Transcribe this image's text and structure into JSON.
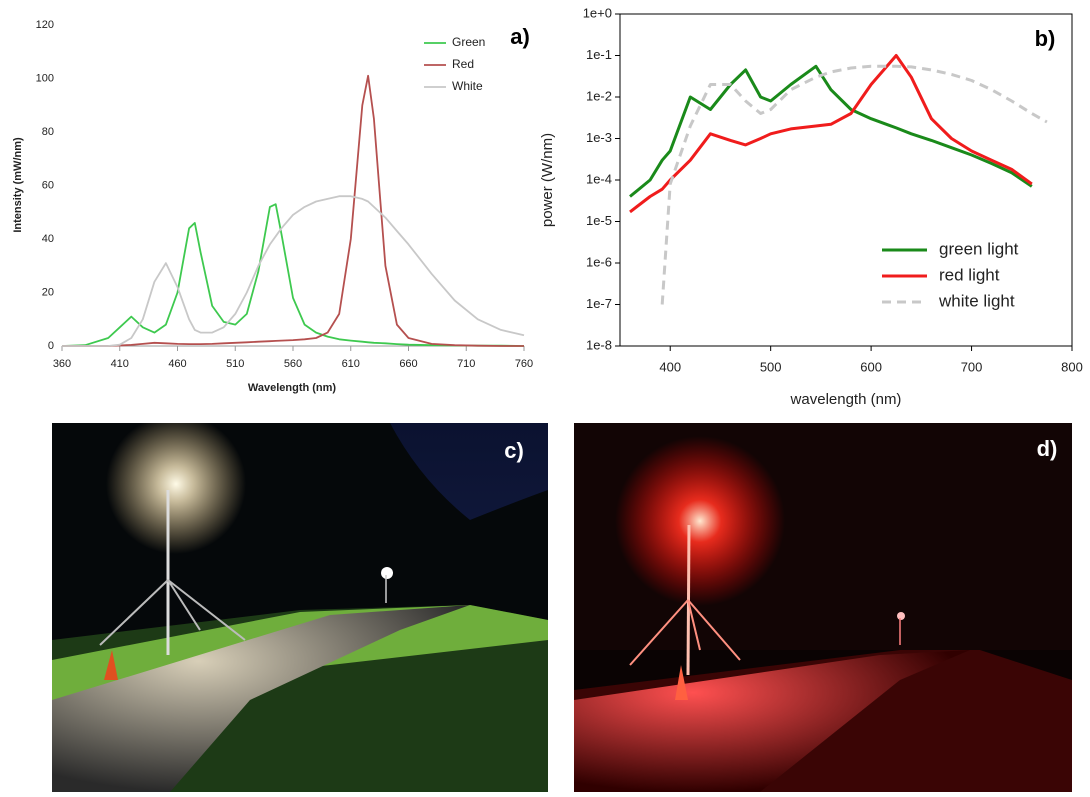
{
  "chart_data": [
    {
      "type": "line",
      "panel_label": "a)",
      "xlabel": "Wavelength (nm)",
      "ylabel": "Intensity (mW/nm)",
      "x": [
        360,
        380,
        400,
        410,
        420,
        430,
        440,
        450,
        460,
        470,
        475,
        480,
        490,
        500,
        510,
        520,
        530,
        540,
        545,
        550,
        560,
        570,
        580,
        590,
        600,
        610,
        620,
        625,
        630,
        640,
        650,
        660,
        680,
        700,
        720,
        740,
        760
      ],
      "series": [
        {
          "name": "Green",
          "color": "#3ec94f",
          "values": [
            0,
            0.3,
            3,
            7,
            11,
            7,
            5,
            8,
            20,
            44,
            46,
            35,
            15,
            9,
            8,
            12,
            28,
            52,
            53,
            42,
            18,
            8,
            5,
            3.5,
            2.5,
            2,
            1.6,
            1.4,
            1.2,
            1,
            0.7,
            0.5,
            0.3,
            0.2,
            0.1,
            0.1,
            0
          ]
        },
        {
          "name": "Red",
          "color": "#b5504f",
          "values": [
            0,
            0,
            0,
            0.2,
            0.4,
            0.8,
            1.2,
            1,
            0.8,
            0.7,
            0.7,
            0.7,
            0.8,
            1,
            1.2,
            1.4,
            1.6,
            1.8,
            1.9,
            2,
            2.2,
            2.5,
            3,
            5,
            12,
            40,
            90,
            101,
            85,
            30,
            8,
            3,
            0.8,
            0.3,
            0.1,
            0,
            0
          ]
        },
        {
          "name": "White",
          "color": "#c8c8c8",
          "values": [
            0,
            0,
            0,
            0.5,
            3,
            10,
            24,
            31,
            22,
            10,
            6,
            5,
            5,
            7,
            12,
            20,
            30,
            38,
            41,
            44,
            49,
            52,
            54,
            55,
            56,
            56,
            55,
            54,
            52,
            48,
            43,
            38,
            27,
            17,
            10,
            6,
            4
          ]
        }
      ],
      "xlim": [
        360,
        760
      ],
      "xticks": [
        360,
        410,
        460,
        510,
        560,
        610,
        660,
        710,
        760
      ],
      "ylim": [
        0,
        120
      ],
      "yticks": [
        0,
        20,
        40,
        60,
        80,
        100,
        120
      ],
      "legend": "upper right"
    },
    {
      "type": "line",
      "panel_label": "b)",
      "xlabel": "wavelength (nm)",
      "ylabel": "power (W/nm)",
      "log_y": true,
      "x": [
        360,
        380,
        392,
        400,
        420,
        440,
        460,
        475,
        490,
        500,
        520,
        545,
        560,
        580,
        600,
        625,
        640,
        660,
        680,
        700,
        720,
        740,
        760,
        775
      ],
      "series": [
        {
          "name": "green light",
          "color": "#1a8a1a",
          "values": [
            4e-05,
            0.0001,
            0.0003,
            0.0005,
            0.01,
            0.005,
            0.02,
            0.045,
            0.01,
            0.008,
            0.02,
            0.055,
            0.015,
            0.005,
            0.003,
            0.0018,
            0.0013,
            0.0009,
            0.0006,
            0.0004,
            0.00025,
            0.00015,
            7e-05,
            null
          ]
        },
        {
          "name": "red light",
          "color": "#f01c1c",
          "values": [
            1.7e-05,
            4e-05,
            6e-05,
            0.0001,
            0.0003,
            0.0013,
            0.0009,
            0.0007,
            0.001,
            0.0013,
            0.0017,
            0.002,
            0.0022,
            0.004,
            0.02,
            0.1,
            0.03,
            0.003,
            0.001,
            0.0005,
            0.0003,
            0.00018,
            8e-05,
            null
          ]
        },
        {
          "name": "white light",
          "color": "#c8c8c8",
          "dash": true,
          "values": [
            null,
            null,
            1e-07,
            8e-05,
            0.002,
            0.02,
            0.02,
            0.008,
            0.004,
            0.005,
            0.015,
            0.03,
            0.04,
            0.05,
            0.055,
            0.055,
            0.053,
            0.045,
            0.035,
            0.025,
            0.015,
            0.008,
            0.004,
            0.0025
          ]
        }
      ],
      "xlim": [
        350,
        800
      ],
      "xticks": [
        400,
        500,
        600,
        700,
        800
      ],
      "ylim": [
        1e-08,
        1
      ],
      "yticks": [
        {
          "value": 1e-08,
          "label": "1e-8"
        },
        {
          "value": 1e-07,
          "label": "1e-7"
        },
        {
          "value": 1e-06,
          "label": "1e-6"
        },
        {
          "value": 1e-05,
          "label": "1e-5"
        },
        {
          "value": 0.0001,
          "label": "1e-4"
        },
        {
          "value": 0.001,
          "label": "1e-3"
        },
        {
          "value": 0.01,
          "label": "1e-2"
        },
        {
          "value": 0.1,
          "label": "1e-1"
        },
        {
          "value": 1,
          "label": "1e+0"
        }
      ],
      "legend": "lower right"
    }
  ],
  "photos": [
    {
      "label": "c)"
    },
    {
      "label": "d)"
    }
  ]
}
